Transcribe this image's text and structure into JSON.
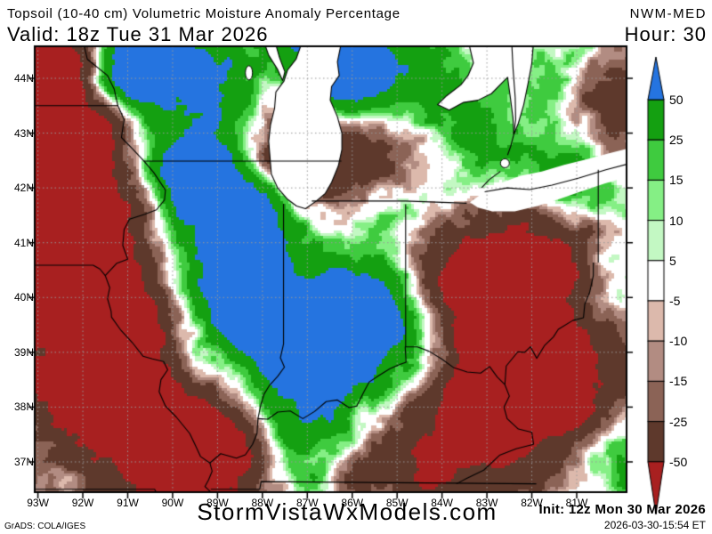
{
  "header": {
    "title": "Topsoil (10-40 cm) Volumetric Moisture Anomaly Percentage",
    "model": "NWM-MED",
    "valid": "Valid: 18z Tue 31 Mar 2026",
    "hour": "Hour: 30"
  },
  "map": {
    "lat_labels": [
      "44N",
      "43N",
      "42N",
      "41N",
      "40N",
      "39N",
      "38N",
      "37N"
    ],
    "lon_labels": [
      "93W",
      "92W",
      "91W",
      "90W",
      "89W",
      "88W",
      "87W",
      "86W",
      "85W",
      "84W",
      "83W",
      "82W",
      "81W"
    ],
    "grid_color": "#999999",
    "border_color": "#000000",
    "water_color": "#ffffff"
  },
  "colorbar": {
    "labels": [
      "50",
      "25",
      "15",
      "10",
      "5",
      "-5",
      "-10",
      "-15",
      "-25",
      "-50"
    ],
    "segment_colors": [
      "#14a011",
      "#3fcb3f",
      "#85ef85",
      "#c3f8c3",
      "#ffffff",
      "#dcb9ac",
      "#b28c82",
      "#8b6356",
      "#5e392c"
    ],
    "over_arrow_color": "#2574e0",
    "under_arrow_color": "#a82020"
  },
  "footer": {
    "site": "StormVistaWxModels.com",
    "init": "Init: 12z Mon 30 Mar 2026",
    "generated": "2026-03-30-15:54 ET",
    "credit": "GrADS: COLA/IGES"
  }
}
